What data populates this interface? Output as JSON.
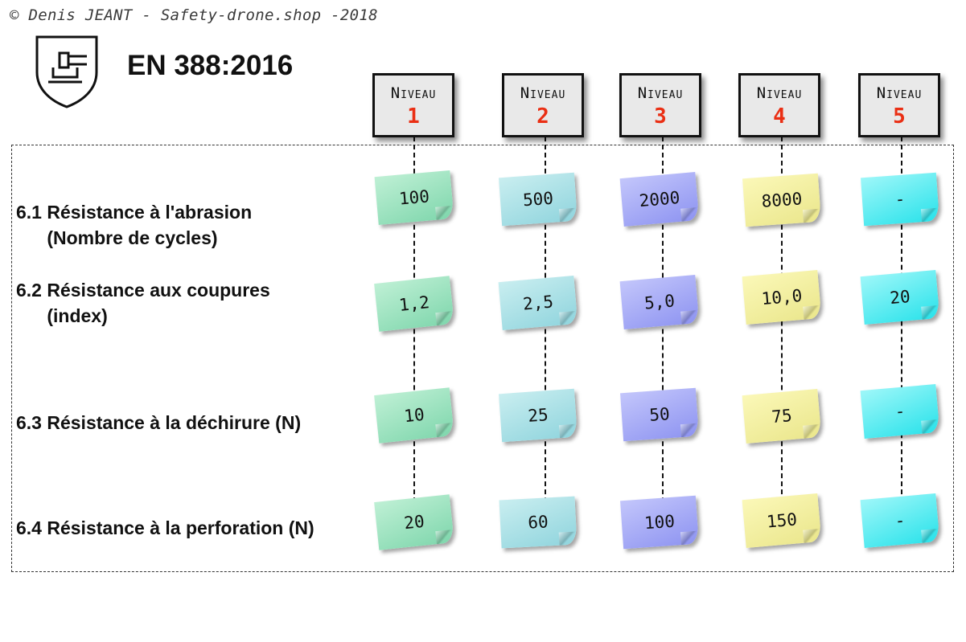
{
  "copyright": "© Denis JEANT - Safety-drone.shop -2018",
  "norm": "EN 388:2016",
  "icon": "shield-glove-mechanical-risk-icon",
  "levels": [
    {
      "word": "Niveau",
      "number": "1"
    },
    {
      "word": "Niveau",
      "number": "2"
    },
    {
      "word": "Niveau",
      "number": "3"
    },
    {
      "word": "Niveau",
      "number": "4"
    },
    {
      "word": "Niveau",
      "number": "5"
    }
  ],
  "rows": [
    {
      "label": "6.1 Résistance à l'abrasion\n      (Nombre de cycles)",
      "values": [
        "100",
        "500",
        "2000",
        "8000",
        "-"
      ]
    },
    {
      "label": "6.2 Résistance aux coupures\n      (index)",
      "values": [
        "1,2",
        "2,5",
        "5,0",
        "10,0",
        "20"
      ]
    },
    {
      "label": "6.3 Résistance à la déchirure (N)",
      "values": [
        "10",
        "25",
        "50",
        "75",
        "-"
      ]
    },
    {
      "label": "6.4 Résistance à la perforation (N)",
      "values": [
        "20",
        "60",
        "100",
        "150",
        "-"
      ]
    }
  ],
  "colors": {
    "level_number": "#ea2f14",
    "note_level_1": "#98e0bb",
    "note_level_2": "#a8dfe5",
    "note_level_3": "#a5aaf7",
    "note_level_4": "#f3f0a2",
    "note_level_5": "#4ee9ef"
  }
}
